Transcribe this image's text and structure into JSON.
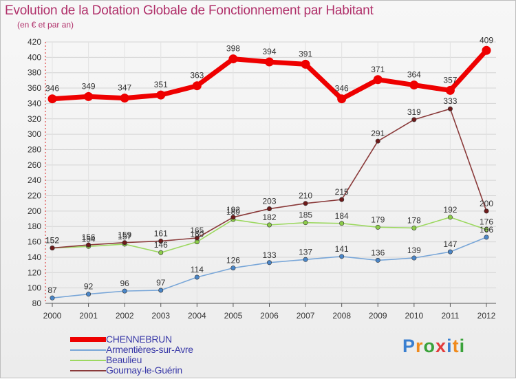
{
  "title": "Evolution de la Dotation Globale de Fonctionnement par Habitant",
  "subtitle": "(en € et par an)",
  "logo": {
    "text": "Proxiti",
    "colors": [
      "#3a7fd0",
      "#f08a1c",
      "#3aa23a",
      "#e23b3b",
      "#3a7fd0",
      "#f08a1c",
      "#3aa23a"
    ]
  },
  "chart_data": {
    "type": "line",
    "title": "Evolution de la Dotation Globale de Fonctionnement par Habitant",
    "subtitle": "(en € et par an)",
    "xlabel": "",
    "ylabel": "",
    "x": [
      "2000",
      "2001",
      "2002",
      "2003",
      "2004",
      "2005",
      "2006",
      "2007",
      "2008",
      "2009",
      "2010",
      "2011",
      "2012"
    ],
    "ylim": [
      80,
      420
    ],
    "yticks": [
      80,
      100,
      120,
      140,
      160,
      180,
      200,
      220,
      240,
      260,
      280,
      300,
      320,
      340,
      360,
      380,
      400,
      420
    ],
    "grid": true,
    "legend_position": "bottom-left",
    "series": [
      {
        "name": "CHENNEBRUN",
        "color": "#ee0000",
        "line": "#ee0000",
        "marker": "#ee0000",
        "width": "thick",
        "values": [
          346,
          349,
          347,
          351,
          363,
          398,
          394,
          391,
          346,
          371,
          364,
          357,
          409
        ]
      },
      {
        "name": "Armentières-sur-Avre",
        "color": "#4a86c8",
        "line": "#78a6d8",
        "marker": "#4a86c8",
        "width": "thin",
        "values": [
          87,
          92,
          96,
          97,
          114,
          126,
          133,
          137,
          141,
          136,
          139,
          147,
          166
        ]
      },
      {
        "name": "Beaulieu",
        "color": "#8ccc4a",
        "line": "#9cd860",
        "marker": "#8ccc4a",
        "width": "thin",
        "values": [
          152,
          154,
          157,
          146,
          160,
          189,
          182,
          185,
          184,
          179,
          178,
          192,
          176
        ]
      },
      {
        "name": "Gournay-le-Guérin",
        "color": "#6e1a1a",
        "line": "#8a3a3a",
        "marker": "#6e1a1a",
        "width": "thin",
        "values": [
          152,
          156,
          159,
          161,
          165,
          192,
          203,
          210,
          215,
          291,
          319,
          333,
          200
        ]
      }
    ]
  }
}
